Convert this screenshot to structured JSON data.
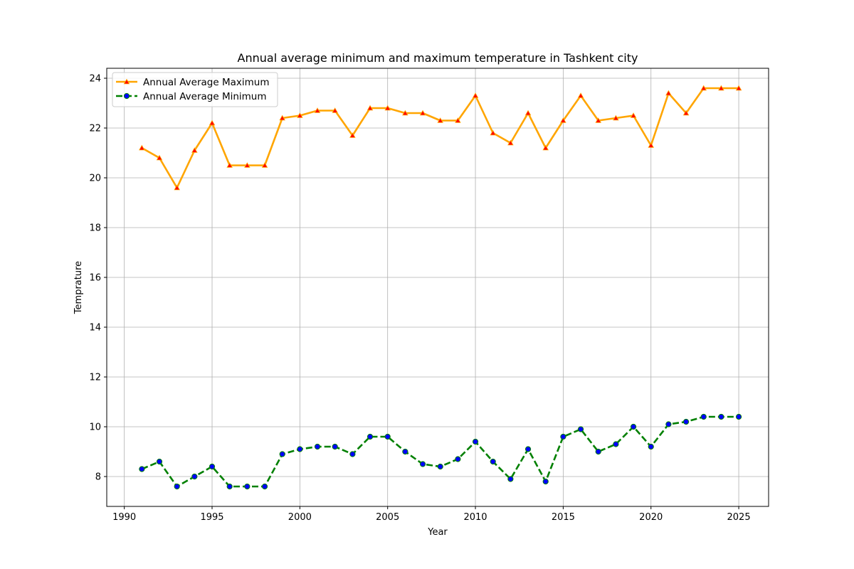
{
  "chart_data": {
    "type": "line",
    "title": "Annual average minimum and maximum temperature in Tashkent city",
    "xlabel": "Year",
    "ylabel": "Temprature",
    "xlim": [
      1989,
      2026.7
    ],
    "ylim": [
      6.8,
      24.4
    ],
    "xticks": [
      1990,
      1995,
      2000,
      2005,
      2010,
      2015,
      2020,
      2025
    ],
    "yticks": [
      8,
      10,
      12,
      14,
      16,
      18,
      20,
      22,
      24
    ],
    "grid": true,
    "legend": "upper-left",
    "x": [
      1991,
      1992,
      1993,
      1994,
      1995,
      1996,
      1997,
      1998,
      1999,
      2000,
      2001,
      2002,
      2003,
      2004,
      2005,
      2006,
      2007,
      2008,
      2009,
      2010,
      2011,
      2012,
      2013,
      2014,
      2015,
      2016,
      2017,
      2018,
      2019,
      2020,
      2021,
      2022,
      2023,
      2024,
      2025
    ],
    "series": [
      {
        "name": "Annual Average Maximum",
        "color": "#ffa500",
        "marker": "triangle",
        "marker_color": "#ff0000",
        "linestyle": "solid",
        "values": [
          21.2,
          20.8,
          19.6,
          21.1,
          22.2,
          20.5,
          20.5,
          20.5,
          22.4,
          22.5,
          22.7,
          22.7,
          21.7,
          22.8,
          22.8,
          22.6,
          22.6,
          22.3,
          22.3,
          23.3,
          21.8,
          21.4,
          22.6,
          21.2,
          22.3,
          23.3,
          22.3,
          22.4,
          22.5,
          21.3,
          23.4,
          22.6,
          23.6,
          23.6,
          23.6
        ]
      },
      {
        "name": "Annual Average Minimum",
        "color": "#008000",
        "marker": "circle",
        "marker_color": "#0000ff",
        "linestyle": "dashed",
        "values": [
          8.3,
          8.6,
          7.6,
          8.0,
          8.4,
          7.6,
          7.6,
          7.6,
          8.9,
          9.1,
          9.2,
          9.2,
          8.9,
          9.6,
          9.6,
          9.0,
          8.5,
          8.4,
          8.7,
          9.4,
          8.6,
          7.9,
          9.1,
          7.8,
          9.6,
          9.9,
          9.0,
          9.3,
          10.0,
          9.2,
          10.1,
          10.2,
          10.4,
          10.4,
          10.4
        ]
      }
    ]
  }
}
